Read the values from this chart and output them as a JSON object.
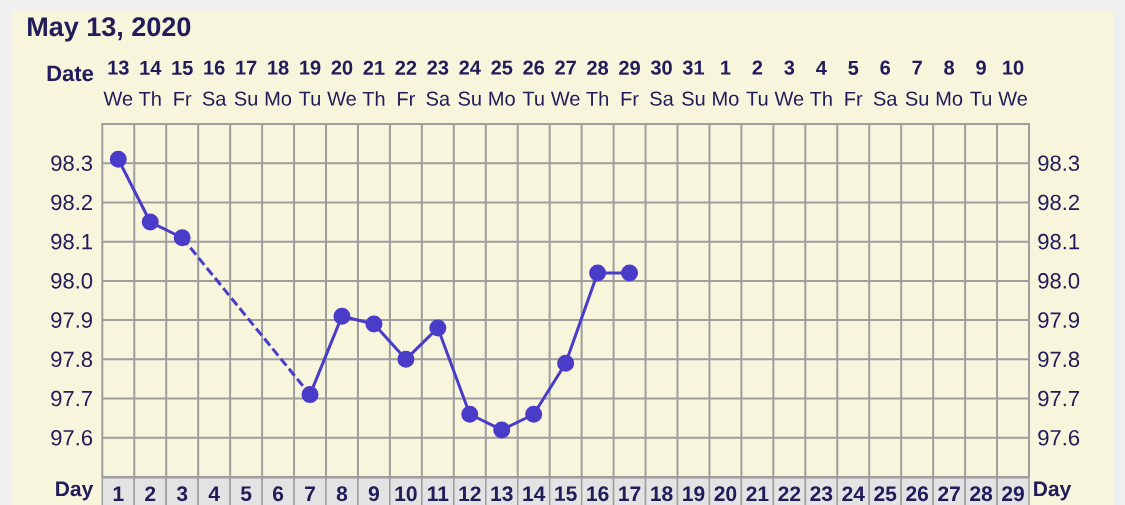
{
  "chart_data": {
    "type": "line",
    "title": "May 13, 2020",
    "xlabel": "Day",
    "x2label": "Date",
    "x": [
      1,
      2,
      3,
      4,
      5,
      6,
      7,
      8,
      9,
      10,
      11,
      12,
      13,
      14,
      15,
      16,
      17
    ],
    "series": [
      {
        "color": "#4a3cc8",
        "values": [
          98.31,
          98.15,
          98.11,
          null,
          null,
          null,
          97.71,
          97.91,
          97.89,
          97.8,
          97.88,
          97.66,
          97.62,
          97.66,
          97.79,
          98.02,
          98.02
        ]
      },
      {
        "color": "#4b3dc9",
        "x": [
          3,
          7
        ],
        "values": [
          98.11,
          97.71
        ],
        "line_style": "dashed",
        "marker": "none"
      }
    ],
    "xlim": [
      0.5,
      29.5
    ],
    "xticks": [
      1,
      2,
      3,
      4,
      5,
      6,
      7,
      8,
      9,
      10,
      11,
      12,
      13,
      14,
      15,
      16,
      17,
      18,
      19,
      20,
      21,
      22,
      23,
      24,
      25,
      26,
      27,
      28,
      29
    ],
    "x2lim": [
      "2020-05-12T12:00",
      "2020-06-10T12:00"
    ],
    "x2ticks": [
      {
        "value": "2020-05-13",
        "label": "**13** We"
      },
      {
        "value": "2020-05-14",
        "label": "**14** Th"
      },
      {
        "value": "2020-05-15",
        "label": "**15** Fr"
      },
      {
        "value": "2020-05-16",
        "label": "**16** Sa"
      },
      {
        "value": "2020-05-17",
        "label": "**17** Su"
      },
      {
        "value": "2020-05-18",
        "label": "**18** Mo"
      },
      {
        "value": "2020-05-19",
        "label": "**19** Tu"
      },
      {
        "value": "2020-05-20",
        "label": "**20** We"
      },
      {
        "value": "2020-05-21",
        "label": "**21** Th"
      },
      {
        "value": "2020-05-22",
        "label": "**22** Fr"
      },
      {
        "value": "2020-05-23",
        "label": "**23** Sa"
      },
      {
        "value": "2020-05-24",
        "label": "**24** Su"
      },
      {
        "value": "2020-05-25",
        "label": "**25** Mo"
      },
      {
        "value": "2020-05-26",
        "label": "**26** Tu"
      },
      {
        "value": "2020-05-27",
        "label": "**27** We"
      },
      {
        "value": "2020-05-28",
        "label": "**28** Th"
      },
      {
        "value": "2020-05-29",
        "label": "**29** Fr"
      },
      {
        "value": "2020-05-30",
        "label": "**30** Sa"
      },
      {
        "value": "2020-05-31",
        "label": "**31** Su"
      },
      {
        "value": "2020-06-01",
        "label": "**1** Mo"
      },
      {
        "value": "2020-06-02",
        "label": "**2** Tu"
      },
      {
        "value": "2020-06-03",
        "label": "**3** We"
      },
      {
        "value": "2020-06-04",
        "label": "**4** Th"
      },
      {
        "value": "2020-06-05",
        "label": "**5** Fr"
      },
      {
        "value": "2020-06-06",
        "label": "**6** Sa"
      },
      {
        "value": "2020-06-07",
        "label": "**7** Su"
      },
      {
        "value": "2020-06-08",
        "label": "**8** Mo"
      },
      {
        "value": "2020-06-09",
        "label": "**9** Tu"
      },
      {
        "value": "2020-06-10",
        "label": "**10** We"
      }
    ],
    "ylim": [
      97.5,
      98.4
    ],
    "yticks": [
      97.6,
      97.7,
      97.8,
      97.9,
      {
        "value": 98,
        "label": "98.0"
      },
      98.1,
      98.2,
      98.3
    ],
    "y2lim": [
      97.5,
      98.4
    ],
    "y2ticks": [
      97.6,
      97.7,
      97.8,
      97.9,
      {
        "value": 98,
        "label": "98.0"
      },
      98.1,
      98.2,
      98.3
    ],
    "grid": true,
    "marker": "circle",
    "line_style": "solid"
  }
}
